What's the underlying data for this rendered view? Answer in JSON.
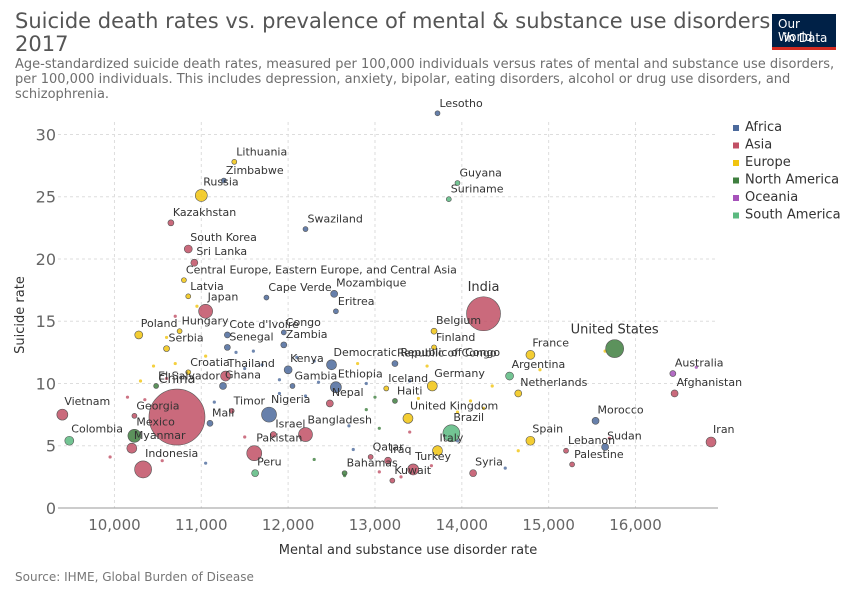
{
  "header": {
    "title_line1": "Suicide death rates vs. prevalence of mental & substance use disorders,",
    "title_line2": "2017",
    "subtitle_line1": "Age-standardized suicide death rates, measured per 100,000 individuals versus rates of mental and substance use disorders,",
    "subtitle_line2": "per 100,000 individuals. This includes depression, anxiety, bipolar, eating disorders, alcohol or drug use disorders, and",
    "subtitle_line3": "schizophrenia."
  },
  "logo": {
    "line1": "Our World",
    "line2": "in Data"
  },
  "footer": {
    "source": "Source: IHME, Global Burden of Disease"
  },
  "colors": {
    "Africa": "#4c6a9c",
    "Asia": "#c15065",
    "Europe": "#f1c40f",
    "North America": "#3f7f3f",
    "Oceania": "#a652ba",
    "South America": "#5bba80",
    "grid": "#dddddd"
  },
  "chart_data": {
    "type": "scatter",
    "xlabel": "Mental and substance use disorder rate",
    "ylabel": "Suicide rate",
    "xlim": [
      9350,
      16950
    ],
    "ylim": [
      0,
      31
    ],
    "xticks": [
      10000,
      11000,
      12000,
      13000,
      14000,
      15000,
      16000
    ],
    "xtick_labels": [
      "10,000",
      "11,000",
      "12,000",
      "13,000",
      "14,000",
      "15,000",
      "16,000"
    ],
    "yticks": [
      0,
      5,
      10,
      15,
      20,
      25,
      30
    ],
    "ytick_labels": [
      "0",
      "5",
      "10",
      "15",
      "20",
      "25",
      "30"
    ],
    "grid": true,
    "legend_position": "right",
    "legend": [
      "Africa",
      "Asia",
      "Europe",
      "North America",
      "Oceania",
      "South America"
    ],
    "points": [
      {
        "label": "Lesotho",
        "x": 13720,
        "y": 31.7,
        "r": 2.5,
        "region": "Africa"
      },
      {
        "label": "Lithuania",
        "x": 11380,
        "y": 27.8,
        "r": 2.5,
        "region": "Europe"
      },
      {
        "label": "Zimbabwe",
        "x": 11260,
        "y": 26.3,
        "r": 2.5,
        "region": "Africa"
      },
      {
        "label": "Russia",
        "x": 11000,
        "y": 25.1,
        "r": 6,
        "region": "Europe"
      },
      {
        "label": "Guyana",
        "x": 13950,
        "y": 26.1,
        "r": 2.5,
        "region": "South America"
      },
      {
        "label": "Suriname",
        "x": 13850,
        "y": 24.8,
        "r": 2.5,
        "region": "South America"
      },
      {
        "label": "Kazakhstan",
        "x": 10650,
        "y": 22.9,
        "r": 3,
        "region": "Asia"
      },
      {
        "label": "Swaziland",
        "x": 12200,
        "y": 22.4,
        "r": 2.5,
        "region": "Africa"
      },
      {
        "label": "South Korea",
        "x": 10850,
        "y": 20.8,
        "r": 4,
        "region": "Asia"
      },
      {
        "label": "Sri Lanka",
        "x": 10920,
        "y": 19.7,
        "r": 3.5,
        "region": "Asia"
      },
      {
        "label": "Central Europe, Eastern Europe, and Central Asia",
        "x": 10800,
        "y": 18.3,
        "r": 2.5,
        "region": "Europe"
      },
      {
        "label": "Mozambique",
        "x": 12530,
        "y": 17.2,
        "r": 3.5,
        "region": "Africa"
      },
      {
        "label": "Latvia",
        "x": 10850,
        "y": 17.0,
        "r": 2.5,
        "region": "Europe"
      },
      {
        "label": "Cape Verde",
        "x": 11750,
        "y": 16.9,
        "r": 2.5,
        "region": "Africa"
      },
      {
        "label": "Japan",
        "x": 11050,
        "y": 15.8,
        "r": 7,
        "region": "Asia"
      },
      {
        "label": "Eritrea",
        "x": 12550,
        "y": 15.8,
        "r": 2.5,
        "region": "Africa"
      },
      {
        "label": "India",
        "x": 14250,
        "y": 15.6,
        "r": 17,
        "region": "Asia"
      },
      {
        "label": "Poland",
        "x": 10280,
        "y": 13.9,
        "r": 4,
        "region": "Europe"
      },
      {
        "label": "Hungary",
        "x": 10750,
        "y": 14.2,
        "r": 2.5,
        "region": "Europe"
      },
      {
        "label": "Cote d'Ivoire",
        "x": 11300,
        "y": 13.9,
        "r": 3,
        "region": "Africa"
      },
      {
        "label": "Congo",
        "x": 11950,
        "y": 14.1,
        "r": 2.5,
        "region": "Africa"
      },
      {
        "label": "Belgium",
        "x": 13680,
        "y": 14.2,
        "r": 3,
        "region": "Europe"
      },
      {
        "label": "Senegal",
        "x": 11300,
        "y": 12.9,
        "r": 3,
        "region": "Africa"
      },
      {
        "label": "Serbia",
        "x": 10600,
        "y": 12.8,
        "r": 3,
        "region": "Europe"
      },
      {
        "label": "Zambia",
        "x": 11950,
        "y": 13.1,
        "r": 3,
        "region": "Africa"
      },
      {
        "label": "Finland",
        "x": 13680,
        "y": 12.9,
        "r": 2.5,
        "region": "Europe"
      },
      {
        "label": "United States",
        "x": 15760,
        "y": 12.8,
        "r": 9,
        "region": "North America"
      },
      {
        "label": "France",
        "x": 14790,
        "y": 12.3,
        "r": 4.5,
        "region": "Europe"
      },
      {
        "label": "Democratic Republic of Congo",
        "x": 12500,
        "y": 11.5,
        "r": 5,
        "region": "Africa"
      },
      {
        "label": "Republic of Congo",
        "x": 13230,
        "y": 11.6,
        "r": 3,
        "region": "Africa"
      },
      {
        "label": "Kenya",
        "x": 12000,
        "y": 11.1,
        "r": 4,
        "region": "Africa"
      },
      {
        "label": "Australia",
        "x": 16430,
        "y": 10.8,
        "r": 3,
        "region": "Oceania"
      },
      {
        "label": "Croatia",
        "x": 10850,
        "y": 10.9,
        "r": 2.5,
        "region": "Europe"
      },
      {
        "label": "Thailand",
        "x": 11280,
        "y": 10.6,
        "r": 5,
        "region": "Asia"
      },
      {
        "label": "Argentina",
        "x": 14550,
        "y": 10.6,
        "r": 4,
        "region": "South America"
      },
      {
        "label": "Germany",
        "x": 13660,
        "y": 9.8,
        "r": 5,
        "region": "Europe"
      },
      {
        "label": "El Salvador",
        "x": 10480,
        "y": 9.8,
        "r": 2.5,
        "region": "North America"
      },
      {
        "label": "Ghana",
        "x": 11250,
        "y": 9.8,
        "r": 3.5,
        "region": "Africa"
      },
      {
        "label": "Gambia",
        "x": 12050,
        "y": 9.8,
        "r": 2.5,
        "region": "Africa"
      },
      {
        "label": "Ethiopia",
        "x": 12550,
        "y": 9.7,
        "r": 5.5,
        "region": "Africa"
      },
      {
        "label": "Iceland",
        "x": 13130,
        "y": 9.6,
        "r": 2.5,
        "region": "Europe"
      },
      {
        "label": "Afghanistan",
        "x": 16450,
        "y": 9.2,
        "r": 3.5,
        "region": "Asia"
      },
      {
        "label": "Netherlands",
        "x": 14650,
        "y": 9.2,
        "r": 3.5,
        "region": "Europe"
      },
      {
        "label": "Haiti",
        "x": 13230,
        "y": 8.6,
        "r": 2.5,
        "region": "North America"
      },
      {
        "label": "Nepal",
        "x": 12480,
        "y": 8.4,
        "r": 3.5,
        "region": "Asia"
      },
      {
        "label": "Nigeria",
        "x": 11780,
        "y": 7.5,
        "r": 7.5,
        "region": "Africa"
      },
      {
        "label": "Timor",
        "x": 11350,
        "y": 7.8,
        "r": 2.5,
        "region": "Asia"
      },
      {
        "label": "Vietnam",
        "x": 9400,
        "y": 7.5,
        "r": 5.5,
        "region": "Asia"
      },
      {
        "label": "Georgia",
        "x": 10230,
        "y": 7.4,
        "r": 2.5,
        "region": "Asia"
      },
      {
        "label": "China",
        "x": 10720,
        "y": 7.3,
        "r": 28,
        "region": "Asia"
      },
      {
        "label": "Mali",
        "x": 11100,
        "y": 6.8,
        "r": 3,
        "region": "Africa"
      },
      {
        "label": "United Kingdom",
        "x": 13380,
        "y": 7.2,
        "r": 5,
        "region": "Europe"
      },
      {
        "label": "Morocco",
        "x": 15540,
        "y": 7.0,
        "r": 3.5,
        "region": "Africa"
      },
      {
        "label": "Bangladesh",
        "x": 12200,
        "y": 5.9,
        "r": 7,
        "region": "Asia"
      },
      {
        "label": "Israel",
        "x": 11830,
        "y": 5.9,
        "r": 3,
        "region": "Asia"
      },
      {
        "label": "Brazil",
        "x": 13880,
        "y": 6.0,
        "r": 8.5,
        "region": "South America"
      },
      {
        "label": "Mexico",
        "x": 10230,
        "y": 5.8,
        "r": 6.5,
        "region": "North America"
      },
      {
        "label": "Colombia",
        "x": 9480,
        "y": 5.4,
        "r": 4.5,
        "region": "South America"
      },
      {
        "label": "Spain",
        "x": 14790,
        "y": 5.4,
        "r": 4.5,
        "region": "Europe"
      },
      {
        "label": "Sudan",
        "x": 15650,
        "y": 4.9,
        "r": 3.5,
        "region": "Africa"
      },
      {
        "label": "Iran",
        "x": 16870,
        "y": 5.3,
        "r": 5,
        "region": "Asia"
      },
      {
        "label": "Myanmar",
        "x": 10200,
        "y": 4.8,
        "r": 5,
        "region": "Asia"
      },
      {
        "label": "Pakistan",
        "x": 11610,
        "y": 4.4,
        "r": 7.5,
        "region": "Asia"
      },
      {
        "label": "Lebanon",
        "x": 15200,
        "y": 4.6,
        "r": 2.5,
        "region": "Asia"
      },
      {
        "label": "Italy",
        "x": 13720,
        "y": 4.6,
        "r": 5,
        "region": "Europe"
      },
      {
        "label": "Qatar",
        "x": 12950,
        "y": 4.1,
        "r": 2.5,
        "region": "Asia"
      },
      {
        "label": "Iraq",
        "x": 13150,
        "y": 3.8,
        "r": 3.5,
        "region": "Asia"
      },
      {
        "label": "Palestine",
        "x": 15270,
        "y": 3.5,
        "r": 2.5,
        "region": "Asia"
      },
      {
        "label": "Turkey",
        "x": 13440,
        "y": 3.1,
        "r": 5.5,
        "region": "Asia"
      },
      {
        "label": "Indonesia",
        "x": 10330,
        "y": 3.1,
        "r": 8.5,
        "region": "Asia"
      },
      {
        "label": "Peru",
        "x": 11620,
        "y": 2.8,
        "r": 3.5,
        "region": "South America"
      },
      {
        "label": "Syria",
        "x": 14130,
        "y": 2.8,
        "r": 3.5,
        "region": "Asia"
      },
      {
        "label": "Bahamas",
        "x": 12650,
        "y": 2.8,
        "r": 2.5,
        "region": "North America"
      },
      {
        "label": "Kuwait",
        "x": 13200,
        "y": 2.2,
        "r": 2.5,
        "region": "Asia"
      }
    ],
    "minor_points": [
      {
        "x": 10950,
        "y": 16.2,
        "region": "Europe"
      },
      {
        "x": 10700,
        "y": 15.4,
        "region": "Asia"
      },
      {
        "x": 10600,
        "y": 13.7,
        "region": "Europe"
      },
      {
        "x": 11050,
        "y": 12.2,
        "region": "Europe"
      },
      {
        "x": 11400,
        "y": 12.5,
        "region": "Africa"
      },
      {
        "x": 11600,
        "y": 12.6,
        "region": "Africa"
      },
      {
        "x": 12100,
        "y": 12.1,
        "region": "Africa"
      },
      {
        "x": 12300,
        "y": 11.8,
        "region": "Africa"
      },
      {
        "x": 10450,
        "y": 11.4,
        "region": "Europe"
      },
      {
        "x": 10700,
        "y": 11.6,
        "region": "Europe"
      },
      {
        "x": 11500,
        "y": 11.2,
        "region": "Africa"
      },
      {
        "x": 11700,
        "y": 11.5,
        "region": "Africa"
      },
      {
        "x": 12800,
        "y": 11.6,
        "region": "Europe"
      },
      {
        "x": 13600,
        "y": 11.4,
        "region": "Europe"
      },
      {
        "x": 15650,
        "y": 12.6,
        "region": "Europe"
      },
      {
        "x": 16700,
        "y": 11.3,
        "region": "Oceania"
      },
      {
        "x": 14900,
        "y": 11.1,
        "region": "Europe"
      },
      {
        "x": 10300,
        "y": 10.2,
        "region": "Europe"
      },
      {
        "x": 10600,
        "y": 10.4,
        "region": "Asia"
      },
      {
        "x": 11900,
        "y": 10.3,
        "region": "Africa"
      },
      {
        "x": 12350,
        "y": 10.1,
        "region": "Africa"
      },
      {
        "x": 12900,
        "y": 10.0,
        "region": "Africa"
      },
      {
        "x": 13400,
        "y": 10.2,
        "region": "Africa"
      },
      {
        "x": 14350,
        "y": 9.8,
        "region": "Europe"
      },
      {
        "x": 11900,
        "y": 9.2,
        "region": "Africa"
      },
      {
        "x": 12200,
        "y": 9.0,
        "region": "Africa"
      },
      {
        "x": 13000,
        "y": 8.9,
        "region": "North America"
      },
      {
        "x": 13500,
        "y": 8.8,
        "region": "Europe"
      },
      {
        "x": 14100,
        "y": 8.6,
        "region": "Europe"
      },
      {
        "x": 10350,
        "y": 8.7,
        "region": "Asia"
      },
      {
        "x": 10150,
        "y": 8.9,
        "region": "Asia"
      },
      {
        "x": 11150,
        "y": 8.5,
        "region": "Africa"
      },
      {
        "x": 12900,
        "y": 7.9,
        "region": "North America"
      },
      {
        "x": 13950,
        "y": 7.7,
        "region": "Europe"
      },
      {
        "x": 14250,
        "y": 8.0,
        "region": "Europe"
      },
      {
        "x": 12700,
        "y": 6.6,
        "region": "Africa"
      },
      {
        "x": 13050,
        "y": 6.4,
        "region": "North America"
      },
      {
        "x": 13400,
        "y": 6.1,
        "region": "Asia"
      },
      {
        "x": 13950,
        "y": 5.4,
        "region": "Africa"
      },
      {
        "x": 14650,
        "y": 4.6,
        "region": "Europe"
      },
      {
        "x": 15700,
        "y": 5.6,
        "region": "Asia"
      },
      {
        "x": 11500,
        "y": 5.7,
        "region": "Asia"
      },
      {
        "x": 9950,
        "y": 4.1,
        "region": "Asia"
      },
      {
        "x": 10550,
        "y": 3.8,
        "region": "Asia"
      },
      {
        "x": 11050,
        "y": 3.6,
        "region": "Africa"
      },
      {
        "x": 12750,
        "y": 4.7,
        "region": "Africa"
      },
      {
        "x": 12300,
        "y": 3.9,
        "region": "North America"
      },
      {
        "x": 13650,
        "y": 3.4,
        "region": "Asia"
      },
      {
        "x": 12650,
        "y": 2.6,
        "region": "North America"
      },
      {
        "x": 13050,
        "y": 2.9,
        "region": "Asia"
      },
      {
        "x": 14500,
        "y": 3.2,
        "region": "Africa"
      },
      {
        "x": 13300,
        "y": 2.5,
        "region": "Asia"
      }
    ]
  }
}
